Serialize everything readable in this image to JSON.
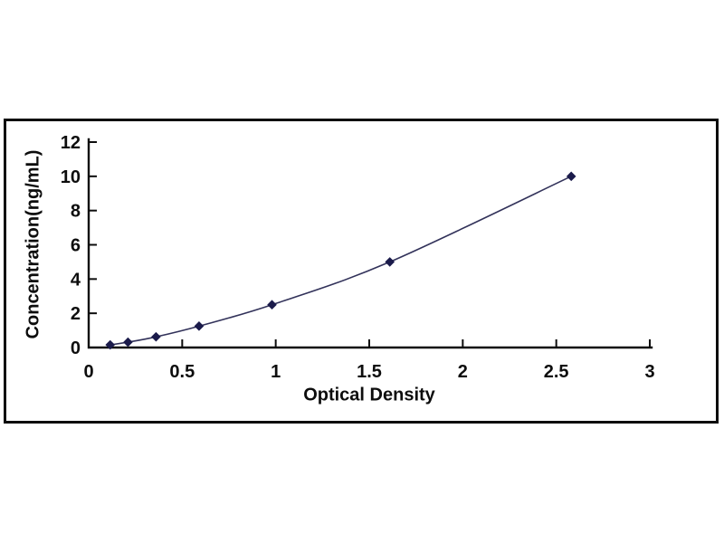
{
  "chart_data": {
    "type": "line",
    "title": "",
    "xlabel": "Optical Density",
    "ylabel": "Concentration(ng/mL)",
    "x": [
      0.115,
      0.21,
      0.36,
      0.59,
      0.98,
      1.61,
      2.58
    ],
    "y": [
      0.156,
      0.312,
      0.625,
      1.25,
      2.5,
      5,
      10
    ],
    "xlim": [
      0,
      3
    ],
    "ylim": [
      0,
      12
    ],
    "x_ticks": [
      0,
      0.5,
      1,
      1.5,
      2,
      2.5,
      3
    ],
    "x_tick_labels": [
      "0",
      "0.5",
      "1",
      "1.5",
      "2",
      "2.5",
      "3"
    ],
    "y_ticks": [
      0,
      2,
      4,
      6,
      8,
      10,
      12
    ],
    "y_tick_labels": [
      "0",
      "2",
      "4",
      "6",
      "8",
      "10",
      "12"
    ],
    "grid": false,
    "legend": "none",
    "marker": "diamond",
    "line_color": "#32325a",
    "marker_color": "#1b1b4b",
    "axis_color": "#0d0d0d",
    "tick_label_color": "#0d0d0d",
    "frame_color": "#0d0d0d",
    "background": "#ffffff"
  }
}
